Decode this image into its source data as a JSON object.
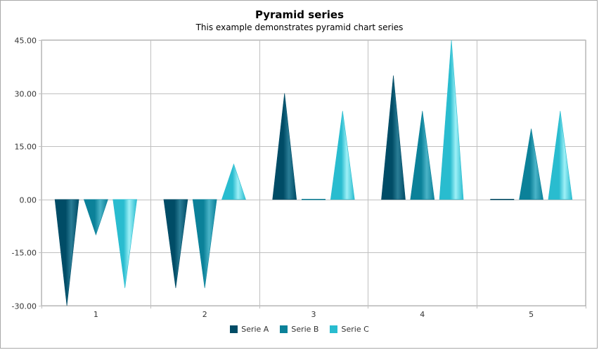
{
  "chart_data": {
    "type": "bar",
    "shape": "pyramid",
    "title": "Pyramid series",
    "subtitle": "This example demonstrates pyramid chart series",
    "categories": [
      "1",
      "2",
      "3",
      "4",
      "5"
    ],
    "ylim": [
      -30,
      45
    ],
    "yticks": [
      "45.00",
      "30.00",
      "15.00",
      "0.00",
      "-15.00",
      "-30.00"
    ],
    "ytick_values": [
      45,
      30,
      15,
      0,
      -15,
      -30
    ],
    "grid": true,
    "legend_position": "bottom",
    "series": [
      {
        "name": "Serie A",
        "values": [
          -30,
          -25,
          30,
          35,
          0
        ],
        "color": "#004c66",
        "light": "#2a7d96"
      },
      {
        "name": "Serie B",
        "values": [
          -10,
          -25,
          0,
          25,
          20
        ],
        "color": "#0b8199",
        "light": "#49b3c7"
      },
      {
        "name": "Serie C",
        "values": [
          -25,
          10,
          25,
          45,
          25
        ],
        "color": "#29bccf",
        "light": "#9df0f7"
      }
    ]
  }
}
